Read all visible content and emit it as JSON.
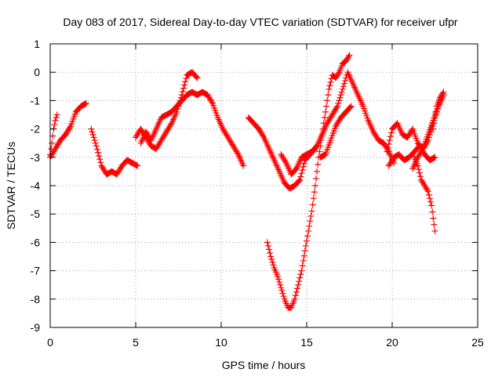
{
  "chart_data": {
    "type": "scatter",
    "title": "Day 083 of 2017, Sidereal Day-to-day VTEC variation (SDTVAR) for receiver ufpr",
    "xlabel": "GPS time / hours",
    "ylabel": "SDTVAR / TECUs",
    "xlim": [
      0,
      25
    ],
    "ylim": [
      -9,
      1
    ],
    "xticks": [
      "0",
      "5",
      "10",
      "15",
      "20",
      "25"
    ],
    "yticks": [
      "1",
      "0",
      "-1",
      "-2",
      "-3",
      "-4",
      "-5",
      "-6",
      "-7",
      "-8",
      "-9"
    ],
    "grid": true,
    "marker": "+",
    "color": "#ff0000",
    "series": [
      {
        "x": [
          0,
          0.1,
          0.2,
          0.3,
          0.4
        ],
        "y": [
          -2.9,
          -2.5,
          -2.0,
          -1.7,
          -1.5
        ]
      },
      {
        "x": [
          0,
          0.3,
          0.6,
          0.9,
          1.2,
          1.5,
          1.8,
          2.1
        ],
        "y": [
          -3.0,
          -2.7,
          -2.4,
          -2.2,
          -1.9,
          -1.4,
          -1.2,
          -1.1
        ]
      },
      {
        "x": [
          2.4,
          2.7,
          3.0,
          3.3,
          3.6,
          3.9,
          4.2,
          4.5,
          4.8,
          5.1
        ],
        "y": [
          -2.0,
          -2.6,
          -3.3,
          -3.6,
          -3.5,
          -3.6,
          -3.3,
          -3.1,
          -3.2,
          -3.3
        ]
      },
      {
        "x": [
          5.0,
          5.3,
          5.6,
          5.9,
          6.2,
          6.5,
          6.8,
          7.1,
          7.4,
          7.7,
          8.0,
          8.3,
          8.6
        ],
        "y": [
          -2.3,
          -2.0,
          -2.3,
          -2.6,
          -2.7,
          -2.4,
          -2.1,
          -1.8,
          -1.4,
          -0.8,
          -0.1,
          0.0,
          -0.2
        ]
      },
      {
        "x": [
          5.3,
          5.6,
          5.9,
          6.2,
          6.5,
          6.8,
          7.1,
          7.4,
          7.7,
          8.0
        ],
        "y": [
          -2.5,
          -2.1,
          -2.4,
          -2.0,
          -1.6,
          -1.5,
          -1.4,
          -1.2,
          -1.0,
          -0.8
        ]
      },
      {
        "x": [
          8.0,
          8.3,
          8.6,
          8.9,
          9.2,
          9.5,
          9.8,
          10.1,
          10.4,
          10.7,
          11.0,
          11.3
        ],
        "y": [
          -0.8,
          -0.7,
          -0.8,
          -0.7,
          -0.8,
          -1.1,
          -1.6,
          -2.0,
          -2.3,
          -2.6,
          -2.9,
          -3.3
        ]
      },
      {
        "x": [
          11.6,
          11.9,
          12.2,
          12.5,
          12.8,
          13.1,
          13.4,
          13.7,
          14.0,
          14.3,
          14.6,
          14.9,
          15.2,
          15.5
        ],
        "y": [
          -1.6,
          -1.8,
          -2.0,
          -2.3,
          -2.7,
          -3.1,
          -3.5,
          -3.9,
          -4.1,
          -4.0,
          -3.8,
          -3.1,
          -2.9,
          -2.7
        ]
      },
      {
        "x": [
          12.7,
          12.9,
          13.1,
          13.3,
          13.5,
          13.7,
          13.9,
          14.1,
          14.3,
          14.5,
          14.7,
          14.9,
          15.1,
          15.3,
          15.5,
          15.7,
          15.9,
          16.1,
          16.3,
          16.5,
          16.7,
          16.9,
          17.1,
          17.3,
          17.5
        ],
        "y": [
          -6.0,
          -6.5,
          -6.9,
          -7.2,
          -7.6,
          -8.0,
          -8.3,
          -8.3,
          -8.0,
          -7.5,
          -7.0,
          -6.3,
          -5.6,
          -4.9,
          -4.0,
          -3.0,
          -2.2,
          -1.4,
          -0.6,
          -0.1,
          -0.2,
          0.0,
          0.3,
          0.4,
          0.6
        ]
      },
      {
        "x": [
          13.5,
          13.8,
          14.1,
          14.4,
          14.7,
          15.0,
          15.3,
          15.6,
          15.9,
          16.2,
          16.5,
          16.8,
          17.1,
          17.4,
          17.7,
          18.0,
          18.3,
          18.6,
          18.9,
          19.2,
          19.5,
          19.8,
          20.1
        ],
        "y": [
          -2.9,
          -3.2,
          -3.6,
          -3.4,
          -3.0,
          -2.9,
          -2.8,
          -2.6,
          -2.2,
          -1.8,
          -1.5,
          -1.2,
          -0.6,
          0.0,
          -0.4,
          -0.8,
          -1.2,
          -1.7,
          -2.1,
          -2.4,
          -2.5,
          -2.8,
          -3.2
        ]
      },
      {
        "x": [
          15.8,
          16.1,
          16.4,
          16.7,
          17.0,
          17.3,
          17.6
        ],
        "y": [
          -3.0,
          -2.9,
          -2.4,
          -1.9,
          -1.6,
          -1.4,
          -1.2
        ]
      },
      {
        "x": [
          19.7,
          20.0,
          20.3,
          20.6,
          20.9,
          21.2,
          21.5,
          21.8,
          22.1,
          22.4,
          22.7,
          23.0
        ],
        "y": [
          -2.8,
          -2.0,
          -1.8,
          -2.2,
          -2.3,
          -2.0,
          -2.5,
          -2.7,
          -2.4,
          -1.8,
          -1.2,
          -0.8
        ]
      },
      {
        "x": [
          19.8,
          20.1,
          20.4,
          20.7,
          21.0,
          21.3,
          21.6,
          21.9,
          22.2,
          22.5
        ],
        "y": [
          -3.3,
          -3.0,
          -2.9,
          -3.1,
          -3.0,
          -2.8,
          -2.6,
          -2.9,
          -3.1,
          -3.0
        ]
      },
      {
        "x": [
          21.2,
          21.5,
          21.8,
          22.1,
          22.4,
          22.7,
          23.0
        ],
        "y": [
          -3.4,
          -3.0,
          -2.7,
          -2.2,
          -1.7,
          -1.2,
          -0.8
        ]
      },
      {
        "x": [
          21.3,
          21.5,
          21.7,
          21.9,
          22.1,
          22.3,
          22.5
        ],
        "y": [
          -3.0,
          -3.3,
          -3.8,
          -4.0,
          -4.2,
          -4.7,
          -5.6
        ]
      },
      {
        "x": [
          22.4,
          22.6,
          22.8,
          23.0
        ],
        "y": [
          -2.0,
          -1.2,
          -0.9,
          -0.7
        ]
      }
    ]
  }
}
